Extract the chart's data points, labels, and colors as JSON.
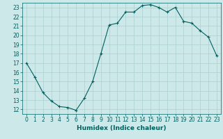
{
  "x": [
    0,
    1,
    2,
    3,
    4,
    5,
    6,
    7,
    8,
    9,
    10,
    11,
    12,
    13,
    14,
    15,
    16,
    17,
    18,
    19,
    20,
    21,
    22,
    23
  ],
  "y": [
    17,
    15.5,
    13.8,
    12.9,
    12.3,
    12.2,
    11.9,
    13.2,
    15.0,
    18.0,
    21.1,
    21.3,
    22.5,
    22.5,
    23.2,
    23.3,
    23.0,
    22.5,
    23.0,
    21.5,
    21.3,
    20.5,
    19.8,
    17.8
  ],
  "line_color": "#006060",
  "marker": "+",
  "bg_color": "#cce8e8",
  "grid_color": "#aacfcf",
  "xlabel": "Humidex (Indice chaleur)",
  "ylim": [
    11.5,
    23.5
  ],
  "xlim": [
    -0.5,
    23.5
  ],
  "yticks": [
    12,
    13,
    14,
    15,
    16,
    17,
    18,
    19,
    20,
    21,
    22,
    23
  ],
  "xticks": [
    0,
    1,
    2,
    3,
    4,
    5,
    6,
    7,
    8,
    9,
    10,
    11,
    12,
    13,
    14,
    15,
    16,
    17,
    18,
    19,
    20,
    21,
    22,
    23
  ],
  "axis_color": "#006060",
  "label_fontsize": 6.5,
  "tick_fontsize": 5.5
}
